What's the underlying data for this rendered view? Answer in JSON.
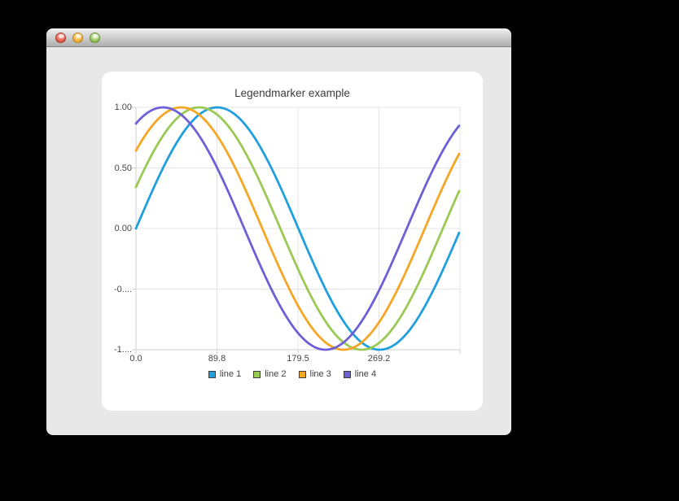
{
  "window": {
    "controls": {
      "close_label": "close",
      "minimize_label": "minimize",
      "zoom_label": "zoom"
    }
  },
  "colors": {
    "panel_background": "#ffffff",
    "window_background": "#e8e8e8",
    "grid_line": "#e4e4e4",
    "axis_line": "#cfcfcf",
    "label_text": "#464646",
    "title_text": "#3c3c3c",
    "legend_marker_border": "#3c3c3c"
  },
  "chart_data": {
    "type": "line",
    "title": "Legendmarker example",
    "xlabel": "",
    "ylabel": "",
    "x_range": [
      0,
      359
    ],
    "y_range": [
      -1,
      1
    ],
    "grid": true,
    "legend_position": "bottom",
    "x_tick_values": [
      0,
      89.75,
      179.5,
      269.25
    ],
    "x_tick_labels": [
      "0.0",
      "89.8",
      "179.5",
      "269.2"
    ],
    "y_tick_values": [
      1,
      0.5,
      0,
      -0.5,
      -1
    ],
    "y_tick_labels": [
      "1.00",
      "0.50",
      "0.00",
      "-0....",
      "-1...."
    ],
    "series": [
      {
        "name": "line 1",
        "color": "#209fdf",
        "function": "sin(x_deg + 0deg)",
        "phase_deg": 0,
        "amplitude": 1
      },
      {
        "name": "line 2",
        "color": "#99ca53",
        "function": "sin(x_deg + 20deg)",
        "phase_deg": 20,
        "amplitude": 1
      },
      {
        "name": "line 3",
        "color": "#f6a625",
        "function": "sin(x_deg + 40deg)",
        "phase_deg": 40,
        "amplitude": 1
      },
      {
        "name": "line 4",
        "color": "#6d5fd5",
        "function": "sin(x_deg + 60deg)",
        "phase_deg": 60,
        "amplitude": 1
      }
    ]
  }
}
